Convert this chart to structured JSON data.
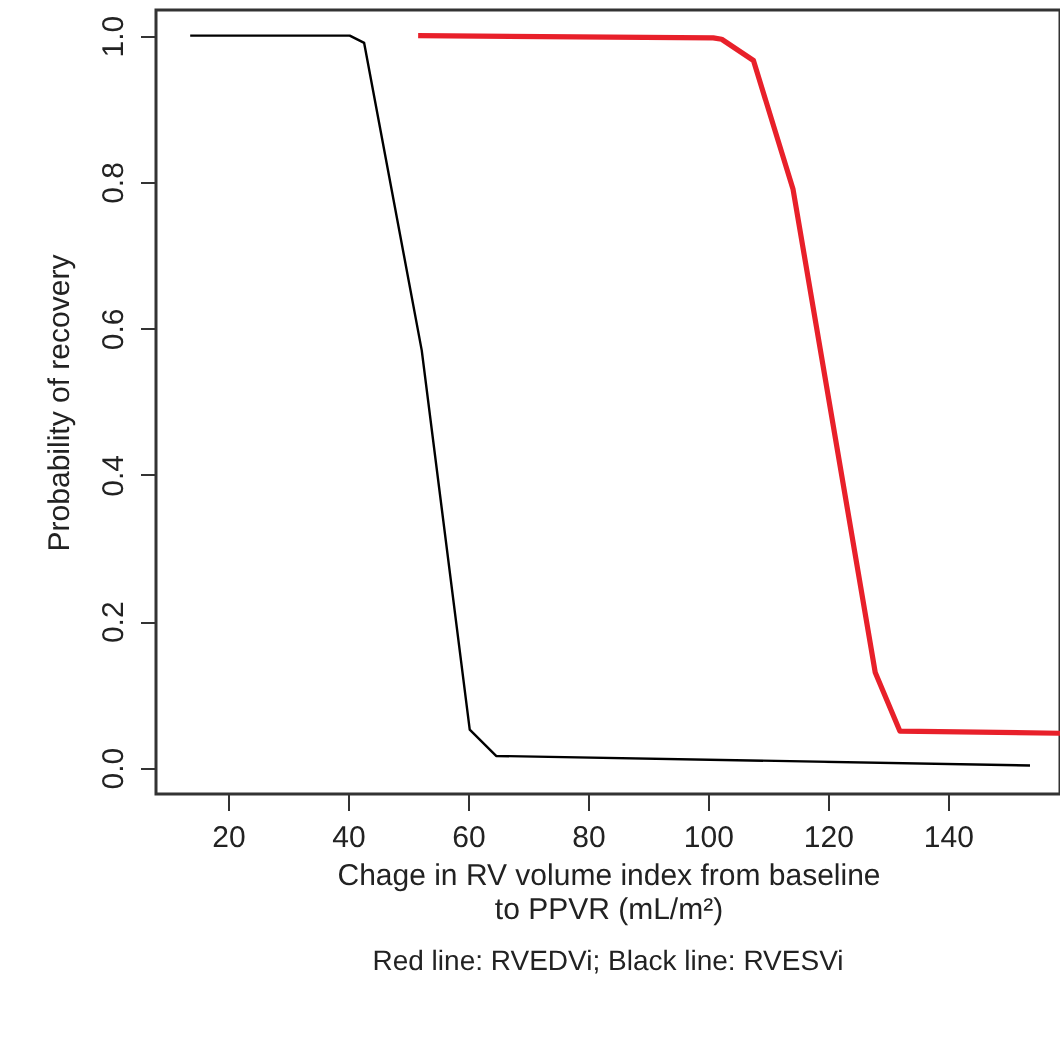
{
  "chart_data": {
    "type": "line",
    "xlabel": "Chage in RV volume index from baseline\nto PPVR (mL/m²)",
    "ylabel": "Probability of recovery",
    "annotations": [
      "Red line: RVEDVi; Black line: RVESVi"
    ],
    "series": [
      {
        "color": "#000000",
        "x": [
          13.7,
          40.3,
          42.7,
          52.3,
          60.3,
          64.7,
          153.7
        ],
        "values": [
          1.0,
          1.0,
          0.99,
          0.57,
          0.052,
          0.016,
          0.003
        ]
      },
      {
        "color": "#e8202a",
        "x": [
          51.7,
          100.9,
          102.3,
          107.6,
          114.2,
          127.9,
          132.0,
          158.7
        ],
        "values": [
          1.0,
          0.997,
          0.995,
          0.966,
          0.79,
          0.13,
          0.05,
          0.047
        ]
      }
    ],
    "xlim": [
      8,
      158.7
    ],
    "xticks": [
      20,
      40,
      60,
      80,
      100,
      120,
      140
    ],
    "ylim": [
      -0.036,
      1.035
    ],
    "yticks": [
      {
        "value": 0,
        "label": "0.0"
      },
      {
        "value": 0.2,
        "label": "0.2"
      },
      {
        "value": 0.4,
        "label": "0.4"
      },
      {
        "value": 0.6,
        "label": "0.6"
      },
      {
        "value": 0.8,
        "label": "0.8"
      },
      {
        "value": 1,
        "label": "1.0"
      }
    ],
    "grid": false
  }
}
